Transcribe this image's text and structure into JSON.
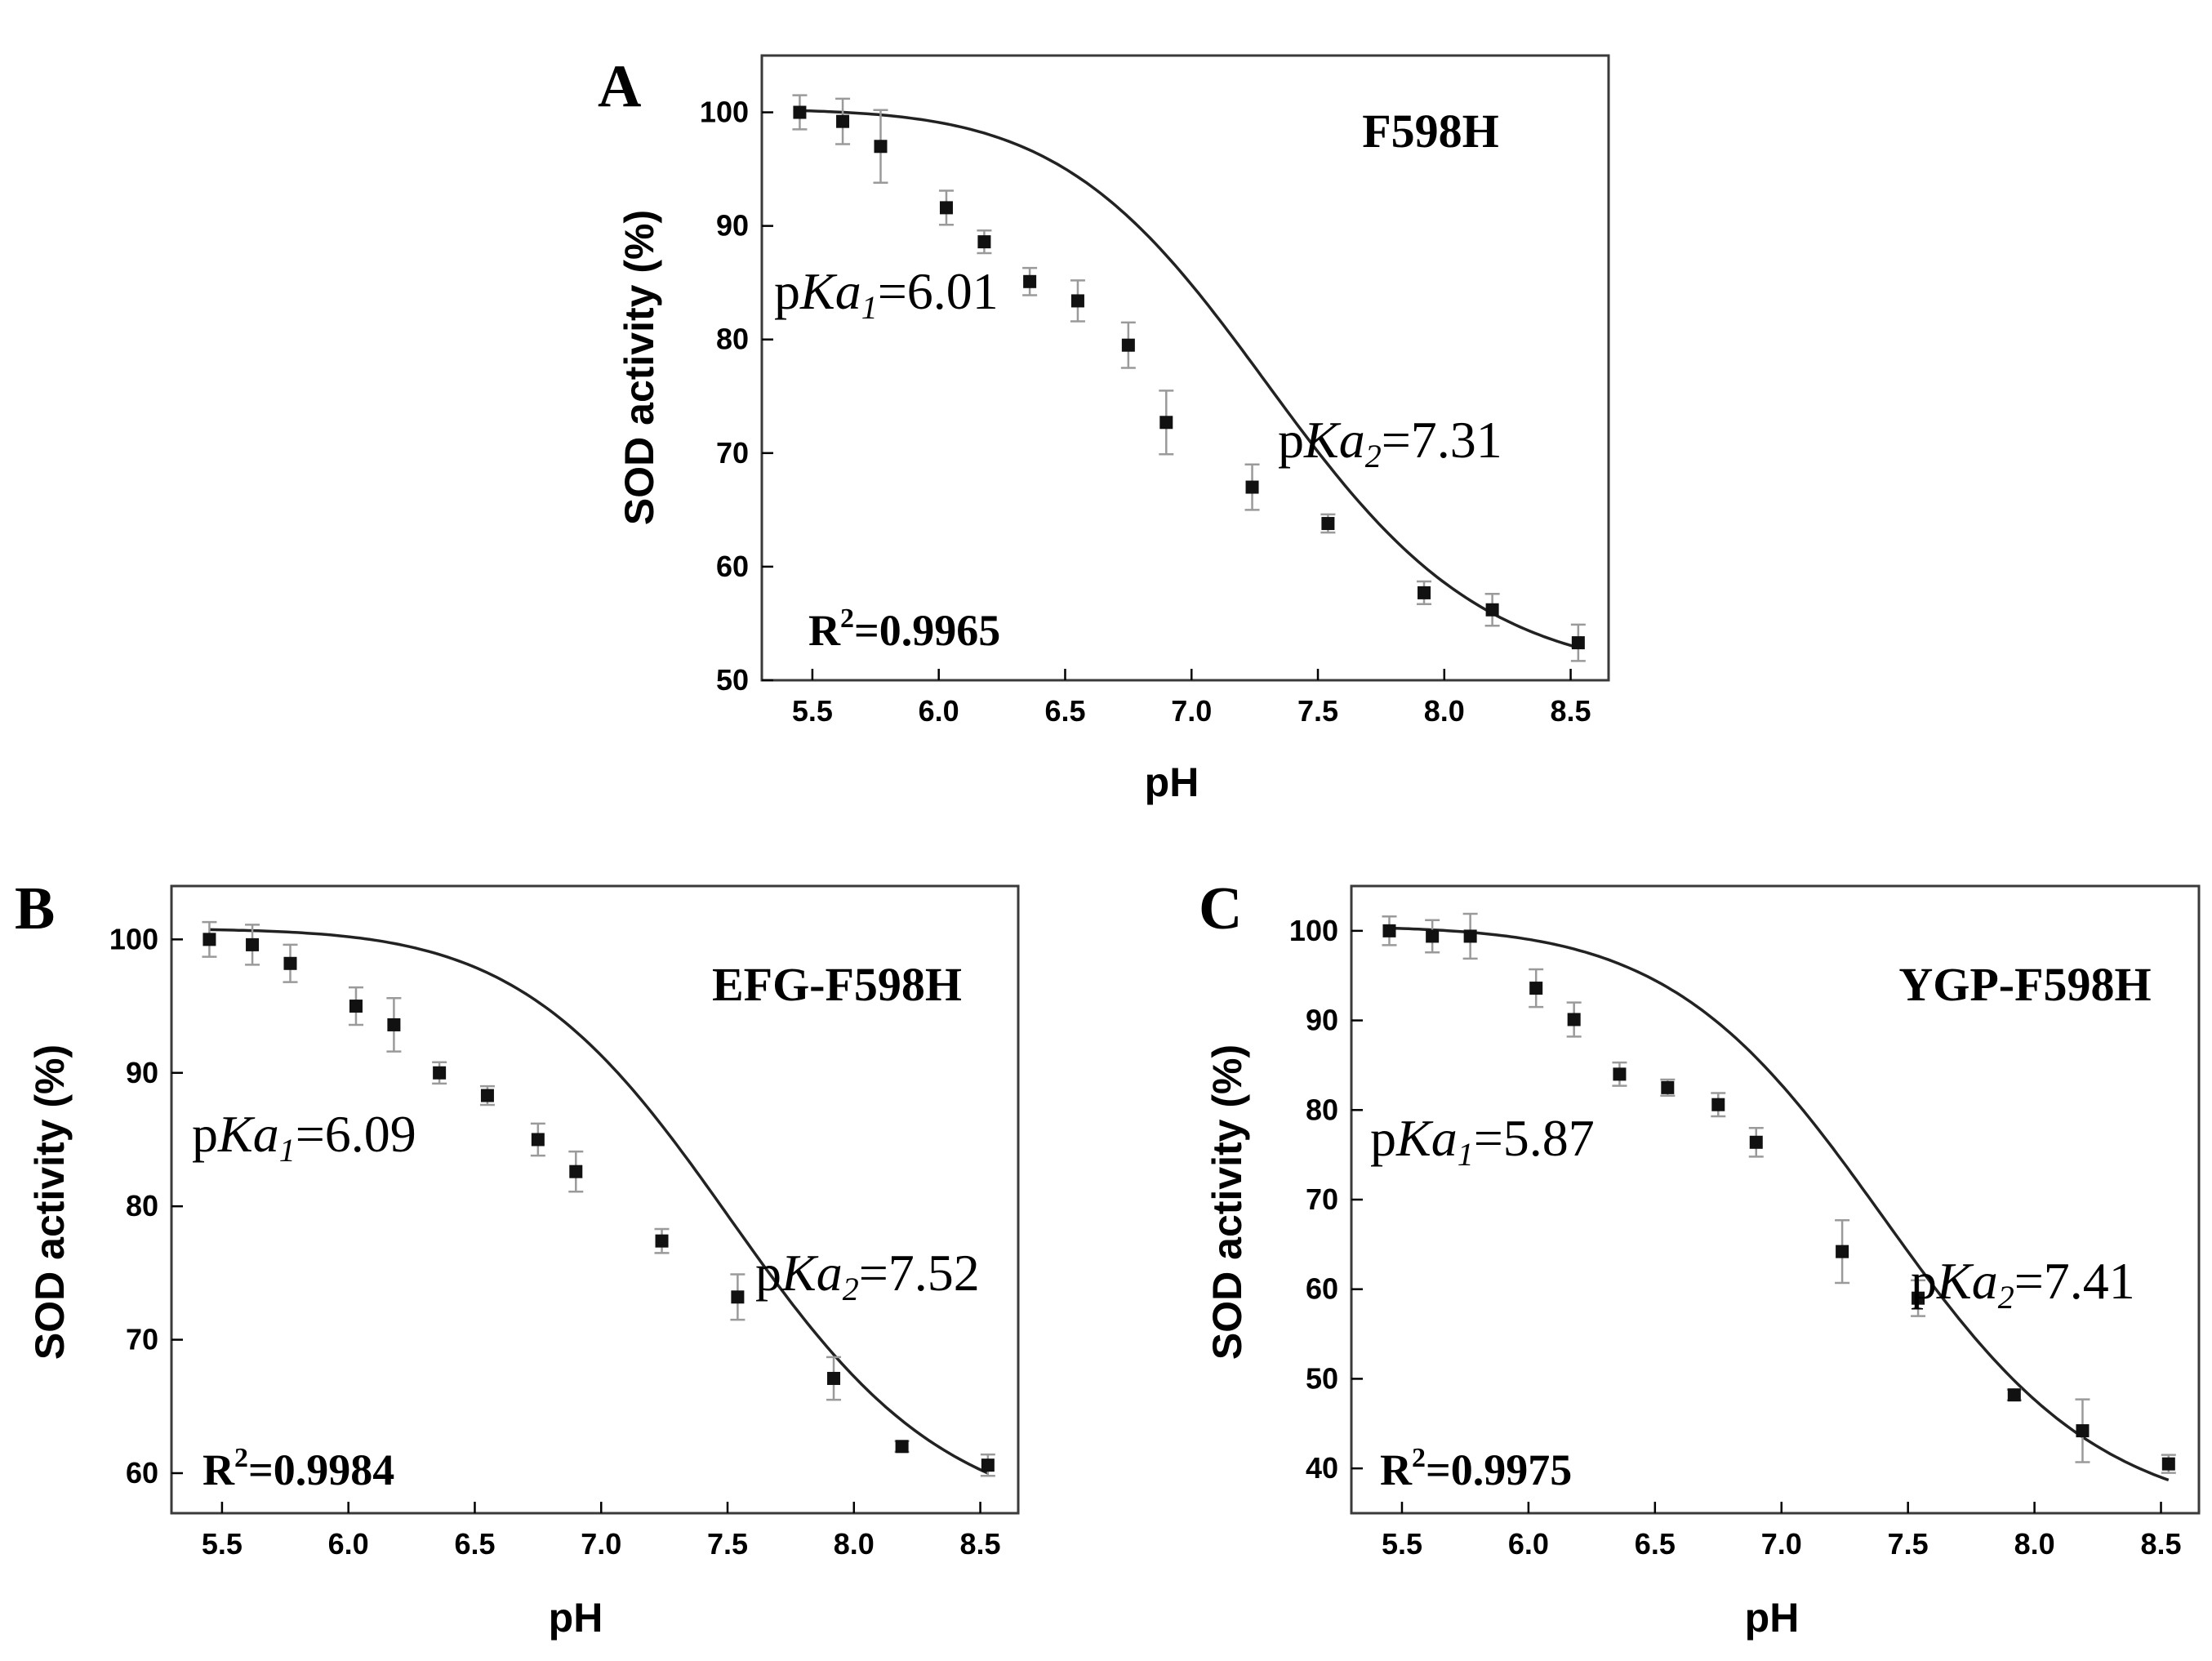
{
  "chart_data": [
    {
      "panel": "A",
      "type": "scatter",
      "sample_label": "F598H",
      "xlabel": "pH",
      "ylabel": "SOD activity (%)",
      "xlim": [
        5.3,
        8.65
      ],
      "ylim": [
        50,
        105
      ],
      "x_ticks": [
        5.5,
        6.0,
        6.5,
        7.0,
        7.5,
        8.0,
        8.5
      ],
      "x_tick_labels": [
        "5.5",
        "6.0",
        "6.5",
        "7.0",
        "7.5",
        "8.0",
        "8.5"
      ],
      "y_ticks": [
        50,
        60,
        70,
        80,
        90,
        100
      ],
      "y_tick_labels": [
        "50",
        "60",
        "70",
        "80",
        "90",
        "100"
      ],
      "grid": false,
      "series": [
        {
          "x": [
            5.45,
            5.62,
            5.77,
            6.03,
            6.18,
            6.36,
            6.55,
            6.75,
            6.9,
            7.24,
            7.54,
            7.92,
            8.19,
            8.53
          ],
          "y": [
            100.0,
            99.2,
            97.0,
            91.6,
            88.6,
            85.1,
            83.4,
            79.5,
            72.7,
            67.0,
            63.8,
            57.7,
            56.2,
            53.3
          ],
          "error": [
            1.5,
            2.0,
            3.2,
            1.5,
            1.0,
            1.2,
            1.8,
            2.0,
            2.8,
            2.0,
            0.8,
            1.0,
            1.4,
            1.6
          ]
        }
      ],
      "fit": {
        "ytop": 100.3,
        "ybottom": 50.0,
        "pka1": 6.01,
        "pka2": 7.31,
        "xstart": 5.45,
        "xend": 8.53
      },
      "annotations": {
        "pka1": {
          "prefix": "p",
          "italic": "K",
          "italic2": "a",
          "sub": "1",
          "value": "=6.01"
        },
        "pka2": {
          "prefix": "p",
          "italic": "K",
          "italic2": "a",
          "sub": "2",
          "value": "=7.31"
        },
        "r2": {
          "prefix": "R",
          "sup": "2",
          "value": "=0.9965"
        }
      }
    },
    {
      "panel": "B",
      "type": "scatter",
      "sample_label": "EFG-F598H",
      "xlabel": "pH",
      "ylabel": "SOD activity (%)",
      "xlim": [
        5.3,
        8.65
      ],
      "ylim": [
        57,
        104
      ],
      "x_ticks": [
        5.5,
        6.0,
        6.5,
        7.0,
        7.5,
        8.0,
        8.5
      ],
      "x_tick_labels": [
        "5.5",
        "6.0",
        "6.5",
        "7.0",
        "7.5",
        "8.0",
        "8.5"
      ],
      "y_ticks": [
        60,
        70,
        80,
        90,
        100
      ],
      "y_tick_labels": [
        "60",
        "70",
        "80",
        "90",
        "100"
      ],
      "grid": false,
      "series": [
        {
          "x": [
            5.45,
            5.62,
            5.77,
            6.03,
            6.18,
            6.36,
            6.55,
            6.75,
            6.9,
            7.24,
            7.54,
            7.92,
            8.19,
            8.53
          ],
          "y": [
            100.0,
            99.6,
            98.2,
            95.0,
            93.6,
            90.0,
            88.3,
            85.0,
            82.6,
            77.4,
            73.2,
            67.1,
            62.0,
            60.6
          ],
          "error": [
            1.3,
            1.5,
            1.4,
            1.4,
            2.0,
            0.8,
            0.7,
            1.2,
            1.5,
            0.9,
            1.7,
            1.6,
            0.4,
            0.8
          ]
        }
      ],
      "fit": {
        "ytop": 100.8,
        "ybottom": 56.0,
        "pka1": 6.09,
        "pka2": 7.52,
        "xstart": 5.45,
        "xend": 8.53
      },
      "annotations": {
        "pka1": {
          "prefix": "p",
          "italic": "K",
          "italic2": "a",
          "sub": "1",
          "value": "=6.09"
        },
        "pka2": {
          "prefix": "p",
          "italic": "K",
          "italic2": "a",
          "sub": "2",
          "value": "=7.52"
        },
        "r2": {
          "prefix": "R",
          "sup": "2",
          "value": "=0.9984"
        }
      }
    },
    {
      "panel": "C",
      "type": "scatter",
      "sample_label": "YGP-F598H",
      "xlabel": "pH",
      "ylabel": "SOD activity (%)",
      "xlim": [
        5.3,
        8.65
      ],
      "ylim": [
        35,
        105
      ],
      "x_ticks": [
        5.5,
        6.0,
        6.5,
        7.0,
        7.5,
        8.0,
        8.5
      ],
      "x_tick_labels": [
        "5.5",
        "6.0",
        "6.5",
        "7.0",
        "7.5",
        "8.0",
        "8.5"
      ],
      "y_ticks": [
        40,
        50,
        60,
        70,
        80,
        90,
        100
      ],
      "y_tick_labels": [
        "40",
        "50",
        "60",
        "70",
        "80",
        "90",
        "100"
      ],
      "grid": false,
      "series": [
        {
          "x": [
            5.45,
            5.62,
            5.77,
            6.03,
            6.18,
            6.36,
            6.55,
            6.75,
            6.9,
            7.24,
            7.54,
            7.92,
            8.19,
            8.53
          ],
          "y": [
            100.0,
            99.4,
            99.4,
            93.6,
            90.1,
            84.0,
            82.5,
            80.6,
            76.4,
            64.2,
            59.0,
            48.2,
            44.2,
            40.5
          ],
          "error": [
            1.6,
            1.8,
            2.5,
            2.1,
            1.9,
            1.3,
            0.9,
            1.3,
            1.6,
            3.5,
            2.0,
            0.6,
            3.5,
            1.0
          ]
        }
      ],
      "fit": {
        "ytop": 100.5,
        "ybottom": 34.0,
        "pka1": 5.87,
        "pka2": 7.41,
        "xstart": 5.45,
        "xend": 8.53
      },
      "annotations": {
        "pka1": {
          "prefix": "p",
          "italic": "K",
          "italic2": "a",
          "sub": "1",
          "value": "=5.87"
        },
        "pka2": {
          "prefix": "p",
          "italic": "K",
          "italic2": "a",
          "sub": "2",
          "value": "=7.41"
        },
        "r2": {
          "prefix": "R",
          "sup": "2",
          "value": "=0.9975"
        }
      }
    }
  ]
}
